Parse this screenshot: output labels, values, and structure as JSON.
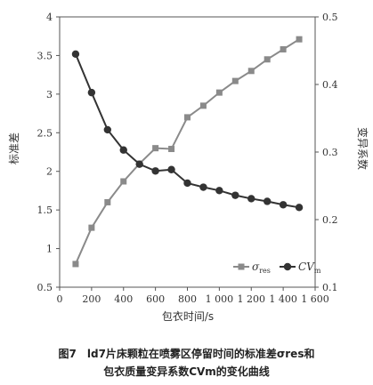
{
  "chart_data": {
    "type": "line",
    "x": [
      100,
      200,
      300,
      400,
      500,
      600,
      700,
      800,
      900,
      1000,
      1100,
      1200,
      1300,
      1400,
      1500
    ],
    "xlabel": "包衣时间/s",
    "ylabel_left": "标准差",
    "ylabel_right": "变异系数",
    "xlim": [
      0,
      1600
    ],
    "ylim_left": [
      0.5,
      4
    ],
    "ylim_right": [
      0.1,
      0.5
    ],
    "x_ticks": [
      0,
      200,
      400,
      600,
      800,
      1000,
      1200,
      1400,
      1600
    ],
    "x_tick_labels": [
      "0",
      "200",
      "400",
      "600",
      "800",
      "1 000",
      "1 200",
      "1 400",
      "1 600"
    ],
    "y_left_ticks": [
      0.5,
      1,
      1.5,
      2,
      2.5,
      3,
      3.5,
      4
    ],
    "y_left_tick_labels": [
      "0.5",
      "1",
      "1.5",
      "2",
      "2.5",
      "3",
      "3.5",
      "4"
    ],
    "y_right_ticks": [
      0.1,
      0.2,
      0.3,
      0.4,
      0.5
    ],
    "y_right_tick_labels": [
      "0.1",
      "0.2",
      "0.3",
      "0.4",
      "0.5"
    ],
    "grid": false,
    "legend_position": "bottom-right",
    "series": [
      {
        "name_main": "σ",
        "name_sub": "res",
        "axis": "left",
        "marker": "square",
        "color": "#8a8a8a",
        "values": [
          0.8,
          1.27,
          1.6,
          1.87,
          2.1,
          2.3,
          2.29,
          2.7,
          2.85,
          3.02,
          3.17,
          3.3,
          3.45,
          3.58,
          3.71
        ]
      },
      {
        "name_main": "CV",
        "name_sub": "m",
        "axis": "right",
        "marker": "circle",
        "color": "#333333",
        "values": [
          0.445,
          0.388,
          0.333,
          0.303,
          0.282,
          0.272,
          0.274,
          0.254,
          0.248,
          0.243,
          0.236,
          0.231,
          0.227,
          0.222,
          0.218
        ]
      }
    ]
  },
  "caption": {
    "line1": "图7　ld7片床颗粒在喷雾区停留时间的标准差σres和",
    "line2": "包衣质量变异系数CVm的变化曲线"
  }
}
